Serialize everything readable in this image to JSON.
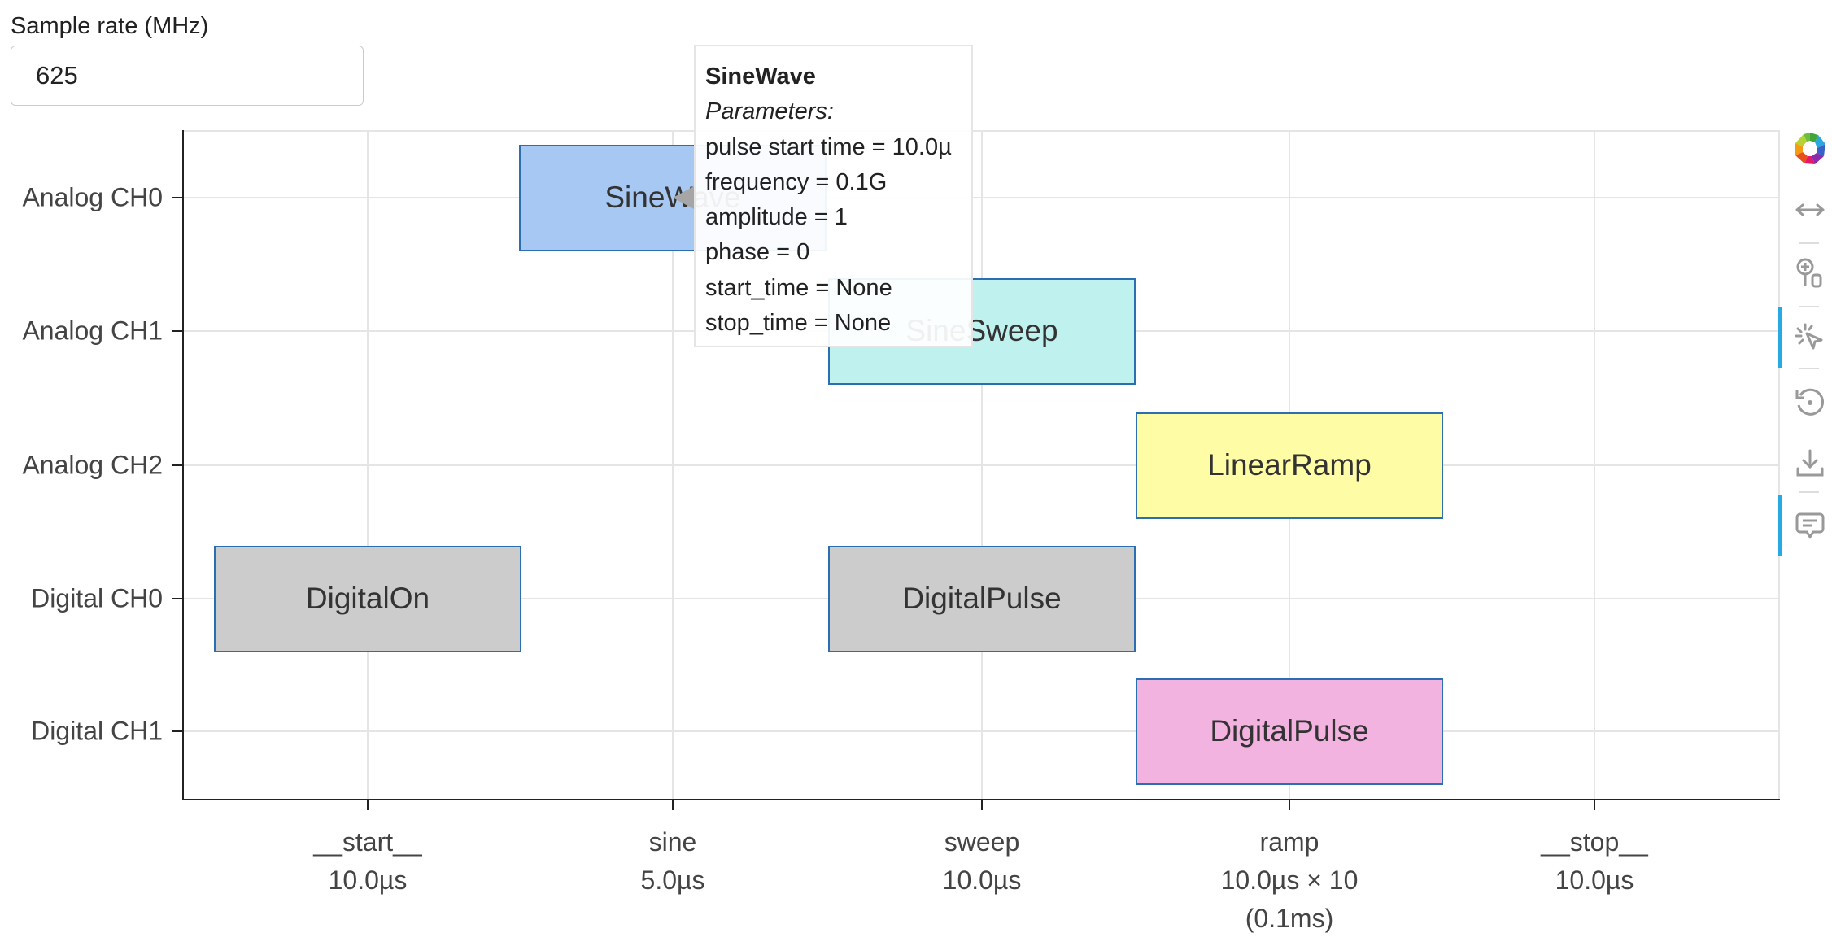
{
  "sample_rate": {
    "label": "Sample rate (MHz)",
    "value": "625"
  },
  "channels": [
    "Analog CH0",
    "Analog CH1",
    "Analog CH2",
    "Digital CH0",
    "Digital CH1"
  ],
  "segments": [
    {
      "name": "__start__",
      "duration": "10.0µs",
      "extra": ""
    },
    {
      "name": "sine",
      "duration": "5.0µs",
      "extra": ""
    },
    {
      "name": "sweep",
      "duration": "10.0µs",
      "extra": ""
    },
    {
      "name": "ramp",
      "duration": "10.0µs × 10",
      "extra": "(0.1ms)"
    },
    {
      "name": "__stop__",
      "duration": "10.0µs",
      "extra": ""
    }
  ],
  "blocks": [
    {
      "label": "SineWave",
      "channel": 0,
      "segment": 1,
      "color": "#a6c8f3"
    },
    {
      "label": "SineSweep",
      "channel": 1,
      "segment": 2,
      "color": "#bff1ef"
    },
    {
      "label": "LinearRamp",
      "channel": 2,
      "segment": 3,
      "color": "#fffca6"
    },
    {
      "label": "DigitalOn",
      "channel": 3,
      "segment": 0,
      "color": "#cccccc"
    },
    {
      "label": "DigitalPulse",
      "channel": 3,
      "segment": 2,
      "color": "#cccccc"
    },
    {
      "label": "DigitalPulse",
      "channel": 4,
      "segment": 3,
      "color": "#f3b3e0"
    }
  ],
  "tooltip": {
    "title": "SineWave",
    "subtitle": "Parameters:",
    "lines": [
      "pulse start time = 10.0µ",
      "frequency = 0.1G",
      "amplitude = 1",
      "phase = 0",
      "start_time = None",
      "stop_time = None"
    ]
  },
  "toolbar": {
    "items": [
      {
        "icon": "bokeh-logo-icon",
        "active": false
      },
      {
        "icon": "pan-icon",
        "active": false
      },
      {
        "icon": "wheel-zoom-icon",
        "active": false
      },
      {
        "icon": "tap-icon",
        "active": true
      },
      {
        "icon": "reset-icon",
        "active": false
      },
      {
        "icon": "save-icon",
        "active": false
      },
      {
        "icon": "hover-icon",
        "active": true
      }
    ]
  }
}
